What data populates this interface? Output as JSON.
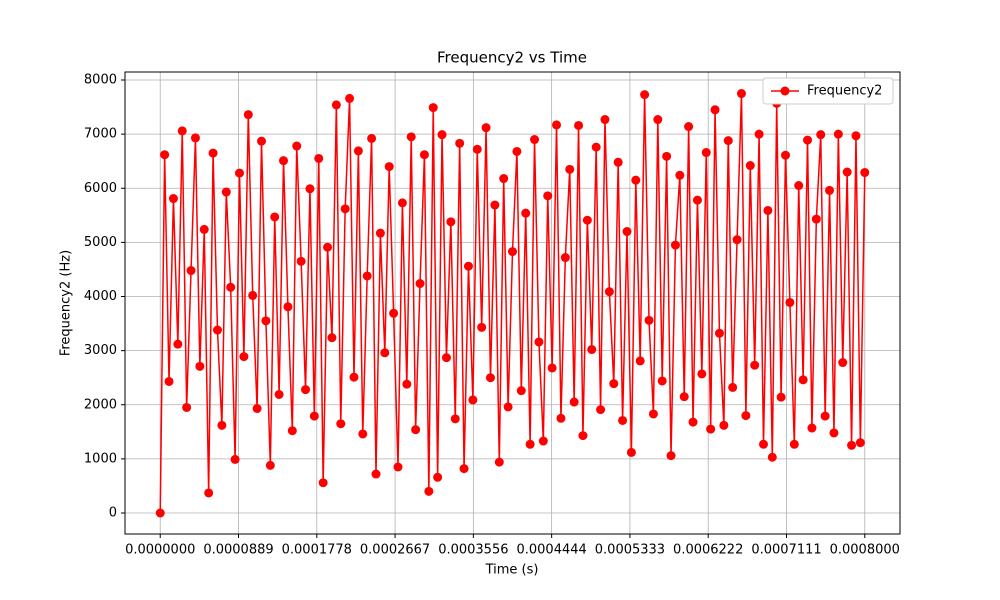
{
  "chart_data": {
    "type": "line",
    "title": "Frequency2 vs Time",
    "xlabel": "Time (s)",
    "ylabel": "Frequency2 (Hz)",
    "x": [
      0.0,
      5e-06,
      1e-05,
      1.5e-05,
      2e-05,
      2.5e-05,
      3e-05,
      3.5e-05,
      4e-05,
      4.5e-05,
      5e-05,
      5.5e-05,
      6e-05,
      6.5e-05,
      7e-05,
      7.5e-05,
      8e-05,
      8.5e-05,
      9e-05,
      9.5e-05,
      0.0001,
      0.000105,
      0.00011,
      0.000115,
      0.00012,
      0.000125,
      0.00013,
      0.000135,
      0.00014,
      0.000145,
      0.00015,
      0.000155,
      0.00016,
      0.000165,
      0.00017,
      0.000175,
      0.00018,
      0.000185,
      0.00019,
      0.000195,
      0.0002,
      0.000205,
      0.00021,
      0.000215,
      0.00022,
      0.000225,
      0.00023,
      0.000235,
      0.00024,
      0.000245,
      0.00025,
      0.000255,
      0.00026,
      0.000265,
      0.00027,
      0.000275,
      0.00028,
      0.000285,
      0.00029,
      0.000295,
      0.0003,
      0.000305,
      0.00031,
      0.000315,
      0.00032,
      0.000325,
      0.00033,
      0.000335,
      0.00034,
      0.000345,
      0.00035,
      0.000355,
      0.00036,
      0.000365,
      0.00037,
      0.000375,
      0.00038,
      0.000385,
      0.00039,
      0.000395,
      0.0004,
      0.000405,
      0.00041,
      0.000415,
      0.00042,
      0.000425,
      0.00043,
      0.000435,
      0.00044,
      0.000445,
      0.00045,
      0.000455,
      0.00046,
      0.000465,
      0.00047,
      0.000475,
      0.00048,
      0.000485,
      0.00049,
      0.000495,
      0.0005,
      0.000505,
      0.00051,
      0.000515,
      0.00052,
      0.000525,
      0.00053,
      0.000535,
      0.00054,
      0.000545,
      0.00055,
      0.000555,
      0.00056,
      0.000565,
      0.00057,
      0.000575,
      0.00058,
      0.000585,
      0.00059,
      0.000595,
      0.0006,
      0.000605,
      0.00061,
      0.000615,
      0.00062,
      0.000625,
      0.00063,
      0.000635,
      0.00064,
      0.000645,
      0.00065,
      0.000655,
      0.00066,
      0.000665,
      0.00067,
      0.000675,
      0.00068,
      0.000685,
      0.00069,
      0.000695,
      0.0007,
      0.000705,
      0.00071,
      0.000715,
      0.00072,
      0.000725,
      0.00073,
      0.000735,
      0.00074,
      0.000745,
      0.00075,
      0.000755,
      0.00076,
      0.000765,
      0.00077,
      0.000775,
      0.00078,
      0.000785,
      0.00079,
      0.000795,
      0.0008
    ],
    "series": [
      {
        "name": "Frequency2",
        "color": "#ff0000",
        "values": [
          0,
          6620,
          2430,
          5810,
          3120,
          7060,
          1950,
          4480,
          6930,
          2710,
          5240,
          370,
          6650,
          3380,
          1620,
          5930,
          4170,
          990,
          6280,
          2890,
          7360,
          4020,
          1930,
          6870,
          3550,
          880,
          5470,
          2190,
          6510,
          3810,
          1520,
          6780,
          4650,
          2280,
          5990,
          1790,
          6550,
          560,
          4910,
          3240,
          7540,
          1650,
          5620,
          7660,
          2510,
          6690,
          1460,
          4380,
          6920,
          720,
          5170,
          2960,
          6400,
          3690,
          850,
          5730,
          2380,
          6950,
          1540,
          4240,
          6620,
          400,
          7490,
          660,
          6990,
          2870,
          5380,
          1740,
          6830,
          820,
          4560,
          2090,
          6720,
          3430,
          7120,
          2500,
          5690,
          940,
          6180,
          1960,
          4830,
          6680,
          2260,
          5540,
          1270,
          6900,
          3160,
          1330,
          5860,
          2680,
          7170,
          1750,
          4720,
          6350,
          2050,
          7160,
          1430,
          5410,
          3020,
          6760,
          1910,
          7270,
          4090,
          2390,
          6480,
          1710,
          5200,
          1120,
          6150,
          2810,
          7730,
          3560,
          1830,
          7270,
          2440,
          6590,
          1060,
          4950,
          6240,
          2150,
          7140,
          1680,
          5780,
          2570,
          6660,
          1550,
          7450,
          3320,
          1620,
          6880,
          2320,
          5050,
          7750,
          1800,
          6420,
          2730,
          7000,
          1270,
          5590,
          1030,
          7570,
          2140,
          6610,
          3890,
          1270,
          6050,
          2460,
          6890,
          1570,
          5430,
          6990,
          1790,
          5960,
          1480,
          7000,
          2780,
          6300,
          1250,
          6970,
          1300,
          6290
        ]
      }
    ],
    "xlim": [
      -4e-05,
      0.00084
    ],
    "ylim": [
      -388,
      8148
    ],
    "xticks": [
      {
        "value": 0,
        "label": "0.0000000"
      },
      {
        "value": 8.88889e-05,
        "label": "0.0000889"
      },
      {
        "value": 0.000177778,
        "label": "0.0001778"
      },
      {
        "value": 0.000266667,
        "label": "0.0002667"
      },
      {
        "value": 0.000355556,
        "label": "0.0003556"
      },
      {
        "value": 0.000444444,
        "label": "0.0004444"
      },
      {
        "value": 0.000533333,
        "label": "0.0005333"
      },
      {
        "value": 0.000622222,
        "label": "0.0006222"
      },
      {
        "value": 0.000711111,
        "label": "0.0007111"
      },
      {
        "value": 0.0008,
        "label": "0.0008000"
      }
    ],
    "yticks": [
      0,
      1000,
      2000,
      3000,
      4000,
      5000,
      6000,
      7000,
      8000
    ],
    "grid": true,
    "legend": "upper right"
  }
}
